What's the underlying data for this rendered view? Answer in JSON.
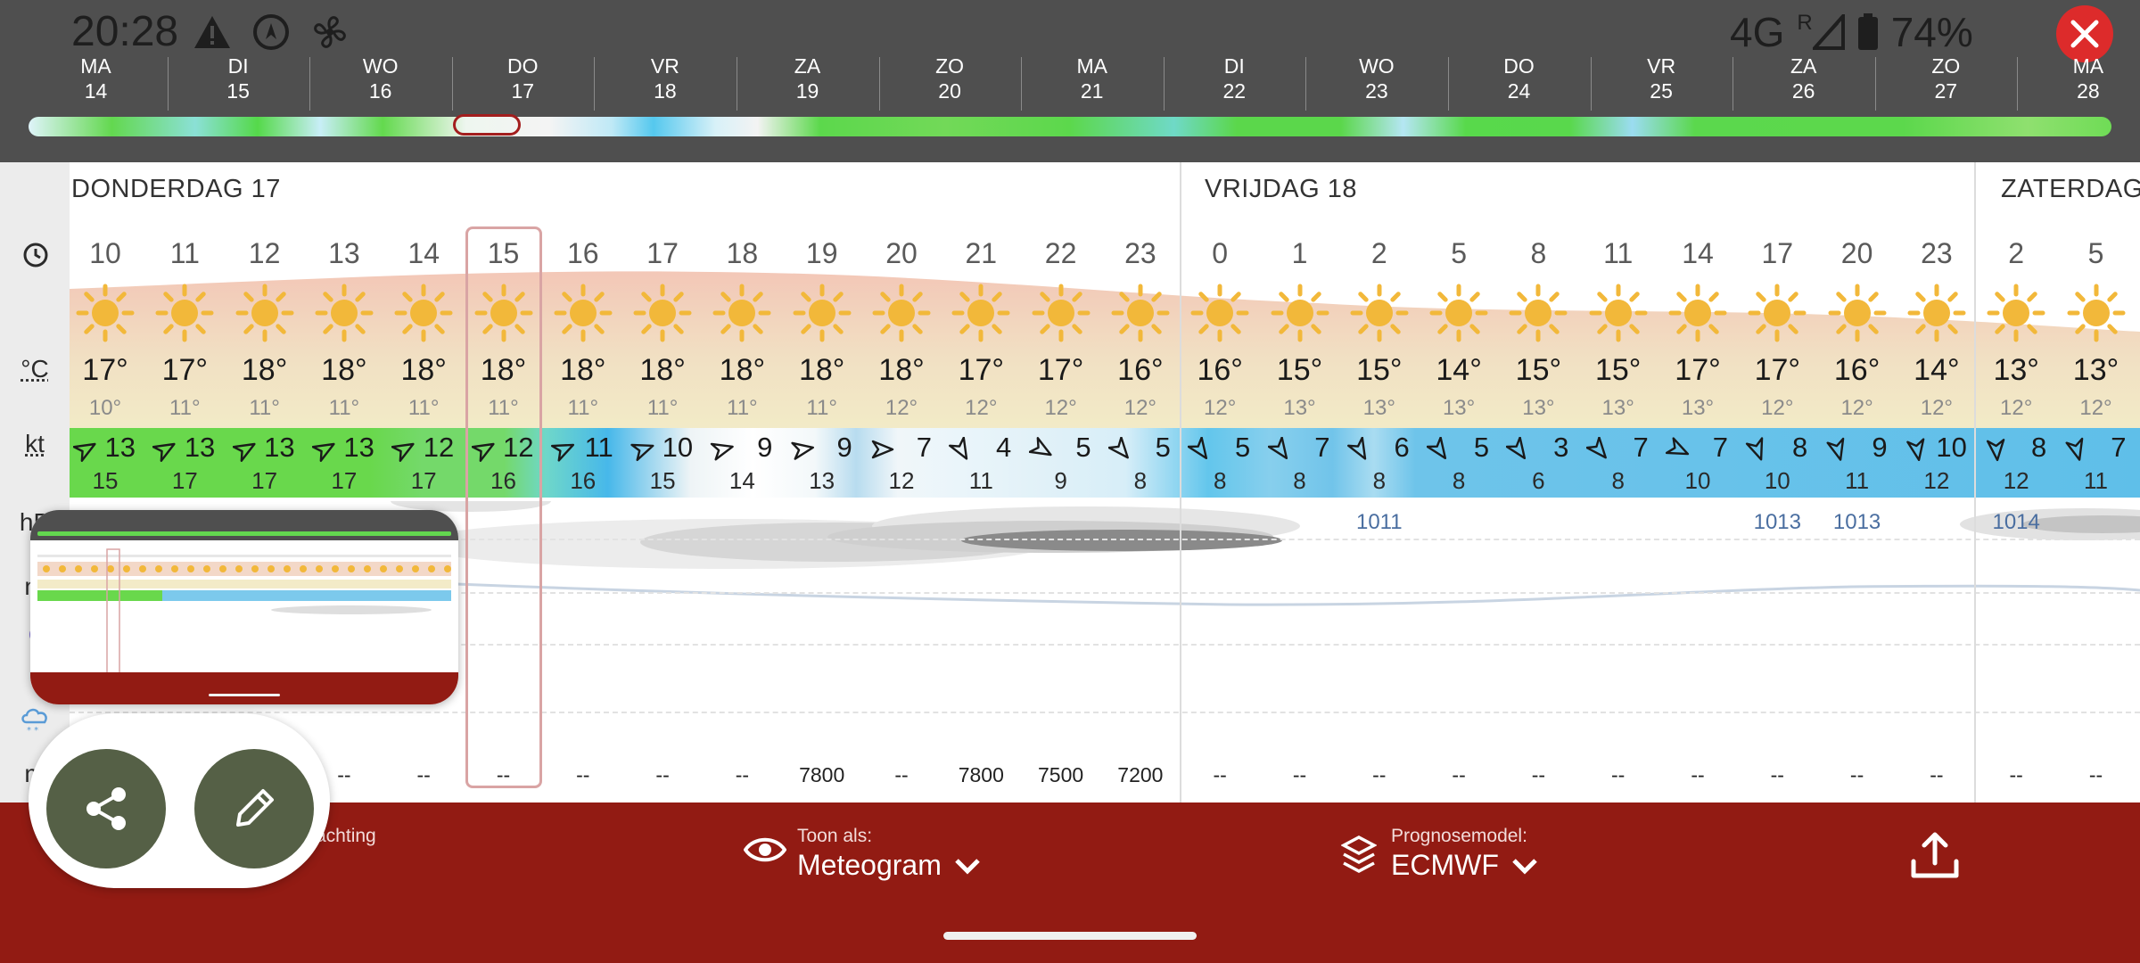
{
  "status_bar": {
    "time": "20:28",
    "network": "4G",
    "roaming": "R",
    "battery": "74%",
    "icons": [
      "warning-icon",
      "compass-icon",
      "fan-icon",
      "signal-icon",
      "battery-icon"
    ]
  },
  "day_tabs": [
    {
      "abbr": "MA",
      "num": "14"
    },
    {
      "abbr": "DI",
      "num": "15"
    },
    {
      "abbr": "WO",
      "num": "16"
    },
    {
      "abbr": "DO",
      "num": "17"
    },
    {
      "abbr": "VR",
      "num": "18"
    },
    {
      "abbr": "ZA",
      "num": "19"
    },
    {
      "abbr": "ZO",
      "num": "20"
    },
    {
      "abbr": "MA",
      "num": "21"
    },
    {
      "abbr": "DI",
      "num": "22"
    },
    {
      "abbr": "WO",
      "num": "23"
    },
    {
      "abbr": "DO",
      "num": "24"
    },
    {
      "abbr": "VR",
      "num": "25"
    },
    {
      "abbr": "ZA",
      "num": "26"
    },
    {
      "abbr": "ZO",
      "num": "27"
    },
    {
      "abbr": "MA",
      "num": "28"
    }
  ],
  "row_labels": {
    "time_icon": "clock-icon",
    "temp_unit": "°C",
    "wind_unit": "kt",
    "pressure_partial": "hP",
    "rain_partial": "m",
    "cloud_partial": "c",
    "snow_icon": "snow-cloud-icon",
    "visibility_partial": "m"
  },
  "days": [
    {
      "title": "DONDERDAG 17"
    },
    {
      "title": "VRIJDAG 18"
    },
    {
      "title": "ZATERDAG"
    }
  ],
  "hours": [
    {
      "h": "10",
      "t": "17°",
      "tmin": "10°",
      "w": "13",
      "g": "15",
      "dir": 60,
      "p": "",
      "v": ""
    },
    {
      "h": "11",
      "t": "17°",
      "tmin": "11°",
      "w": "13",
      "g": "17",
      "dir": 60,
      "p": "",
      "v": ""
    },
    {
      "h": "12",
      "t": "18°",
      "tmin": "11°",
      "w": "13",
      "g": "17",
      "dir": 60,
      "p": "",
      "v": ""
    },
    {
      "h": "13",
      "t": "18°",
      "tmin": "11°",
      "w": "13",
      "g": "17",
      "dir": 60,
      "p": "",
      "v": "--"
    },
    {
      "h": "14",
      "t": "18°",
      "tmin": "11°",
      "w": "12",
      "g": "17",
      "dir": 60,
      "p": "",
      "v": "--"
    },
    {
      "h": "15",
      "t": "18°",
      "tmin": "11°",
      "w": "12",
      "g": "16",
      "dir": 60,
      "p": "",
      "v": "--"
    },
    {
      "h": "16",
      "t": "18°",
      "tmin": "11°",
      "w": "11",
      "g": "16",
      "dir": 65,
      "p": "",
      "v": "--"
    },
    {
      "h": "17",
      "t": "18°",
      "tmin": "11°",
      "w": "10",
      "g": "15",
      "dir": 70,
      "p": "",
      "v": "--"
    },
    {
      "h": "18",
      "t": "18°",
      "tmin": "11°",
      "w": "9",
      "g": "14",
      "dir": 75,
      "p": "",
      "v": "--"
    },
    {
      "h": "19",
      "t": "18°",
      "tmin": "11°",
      "w": "9",
      "g": "13",
      "dir": 80,
      "p": "",
      "v": "7800"
    },
    {
      "h": "20",
      "t": "18°",
      "tmin": "12°",
      "w": "7",
      "g": "12",
      "dir": 90,
      "p": "",
      "v": "--"
    },
    {
      "h": "21",
      "t": "17°",
      "tmin": "12°",
      "w": "4",
      "g": "11",
      "dir": 150,
      "p": "",
      "v": "7800"
    },
    {
      "h": "22",
      "t": "17°",
      "tmin": "12°",
      "w": "5",
      "g": "9",
      "dir": 120,
      "p": "",
      "v": "7500"
    },
    {
      "h": "23",
      "t": "16°",
      "tmin": "12°",
      "w": "5",
      "g": "8",
      "dir": 140,
      "p": "",
      "v": "7200"
    },
    {
      "h": "0",
      "t": "16°",
      "tmin": "12°",
      "w": "5",
      "g": "8",
      "dir": 145,
      "p": "",
      "v": "--"
    },
    {
      "h": "1",
      "t": "15°",
      "tmin": "13°",
      "w": "7",
      "g": "8",
      "dir": 145,
      "p": "",
      "v": "--"
    },
    {
      "h": "2",
      "t": "15°",
      "tmin": "13°",
      "w": "6",
      "g": "8",
      "dir": 150,
      "p": "1011",
      "v": "--"
    },
    {
      "h": "5",
      "t": "14°",
      "tmin": "13°",
      "w": "5",
      "g": "8",
      "dir": 145,
      "p": "",
      "v": "--"
    },
    {
      "h": "8",
      "t": "15°",
      "tmin": "13°",
      "w": "3",
      "g": "6",
      "dir": 145,
      "p": "",
      "v": "--"
    },
    {
      "h": "11",
      "t": "15°",
      "tmin": "13°",
      "w": "7",
      "g": "8",
      "dir": 140,
      "p": "",
      "v": "--"
    },
    {
      "h": "14",
      "t": "17°",
      "tmin": "13°",
      "w": "7",
      "g": "10",
      "dir": 115,
      "p": "",
      "v": "--"
    },
    {
      "h": "17",
      "t": "17°",
      "tmin": "12°",
      "w": "8",
      "g": "10",
      "dir": 160,
      "p": "1013",
      "v": "--"
    },
    {
      "h": "20",
      "t": "16°",
      "tmin": "12°",
      "w": "9",
      "g": "11",
      "dir": 165,
      "p": "1013",
      "v": "--"
    },
    {
      "h": "23",
      "t": "14°",
      "tmin": "12°",
      "w": "10",
      "g": "12",
      "dir": 170,
      "p": "",
      "v": "--"
    },
    {
      "h": "2",
      "t": "13°",
      "tmin": "12°",
      "w": "8",
      "g": "12",
      "dir": 175,
      "p": "1014",
      "v": "--"
    },
    {
      "h": "5",
      "t": "13°",
      "tmin": "12°",
      "w": "7",
      "g": "11",
      "dir": 165,
      "p": "",
      "v": "--"
    }
  ],
  "bottom_bar": {
    "partial_label": "achting",
    "view_label": "Toon als:",
    "view_value": "Meteogram",
    "model_label": "Prognosemodel:",
    "model_value": "ECMWF",
    "share_icon": "upload-icon"
  },
  "colors": {
    "brand_red": "#921b13",
    "close_red": "#dd2b2b",
    "fab_green": "#556046",
    "sun": "#f2b83a",
    "wind_green": "#69d84c",
    "wind_blue": "#5fbfe9"
  }
}
